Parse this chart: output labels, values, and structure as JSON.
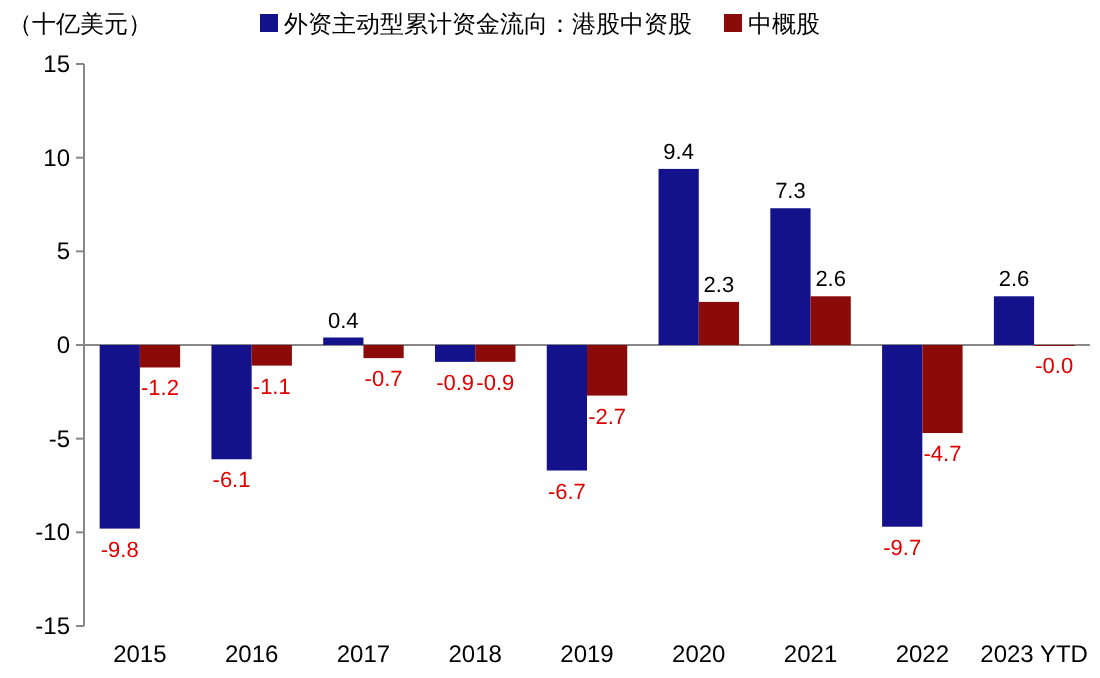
{
  "chart_data": {
    "type": "bar",
    "ylabel": "（十亿美元）",
    "categories": [
      "2015",
      "2016",
      "2017",
      "2018",
      "2019",
      "2020",
      "2021",
      "2022",
      "2023 YTD"
    ],
    "series": [
      {
        "name": "外资主动型累计资金流向：港股中资股",
        "color": "#14128a",
        "values": [
          -9.8,
          -6.1,
          0.4,
          -0.9,
          -6.7,
          9.4,
          7.3,
          -9.7,
          2.6
        ],
        "value_labels": [
          "-9.8",
          "-6.1",
          "0.4",
          "-0.9",
          "-6.7",
          "9.4",
          "7.3",
          "-9.7",
          "2.6"
        ]
      },
      {
        "name": "中概股",
        "color": "#8b0a0a",
        "values": [
          -1.2,
          -1.1,
          -0.7,
          -0.9,
          -2.7,
          2.3,
          2.6,
          -4.7,
          -0.0
        ],
        "value_labels": [
          "-1.2",
          "-1.1",
          "-0.7",
          "-0.9",
          "-2.7",
          "2.3",
          "2.6",
          "-4.7",
          "-0.0"
        ]
      }
    ],
    "ylim": [
      -15,
      15
    ],
    "yticks": [
      -15,
      -10,
      -5,
      0,
      5,
      10,
      15
    ],
    "legend": "top"
  }
}
